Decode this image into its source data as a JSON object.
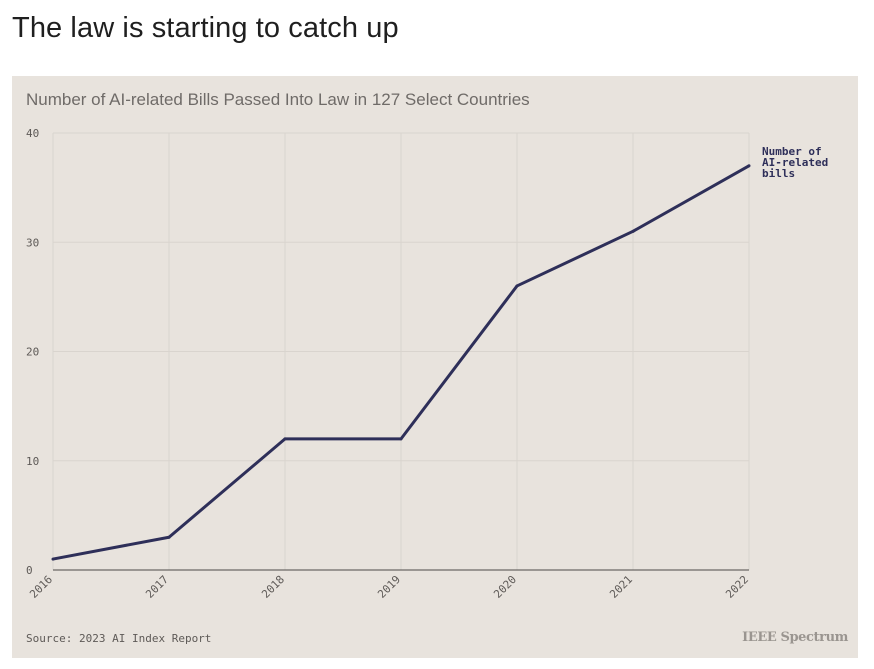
{
  "page": {
    "title": "The law is starting to catch up"
  },
  "chart_data": {
    "type": "line",
    "title": "Number of AI-related Bills Passed Into Law in 127 Select Countries",
    "xlabel": "",
    "ylabel": "",
    "x": [
      "2016",
      "2017",
      "2018",
      "2019",
      "2020",
      "2021",
      "2022"
    ],
    "series": [
      {
        "name": "Number of AI-related bills",
        "name_lines": [
          "Number of",
          "AI-related",
          "bills"
        ],
        "values": [
          1,
          3,
          12,
          12,
          26,
          31,
          37
        ],
        "color": "#2e2f59"
      }
    ],
    "ylim": [
      0,
      40
    ],
    "yticks": [
      0,
      10,
      20,
      30,
      40
    ],
    "grid": true,
    "background": "#e8e3dd",
    "source": "Source: 2023 AI Index Report",
    "brand": "IEEE Spectrum"
  }
}
